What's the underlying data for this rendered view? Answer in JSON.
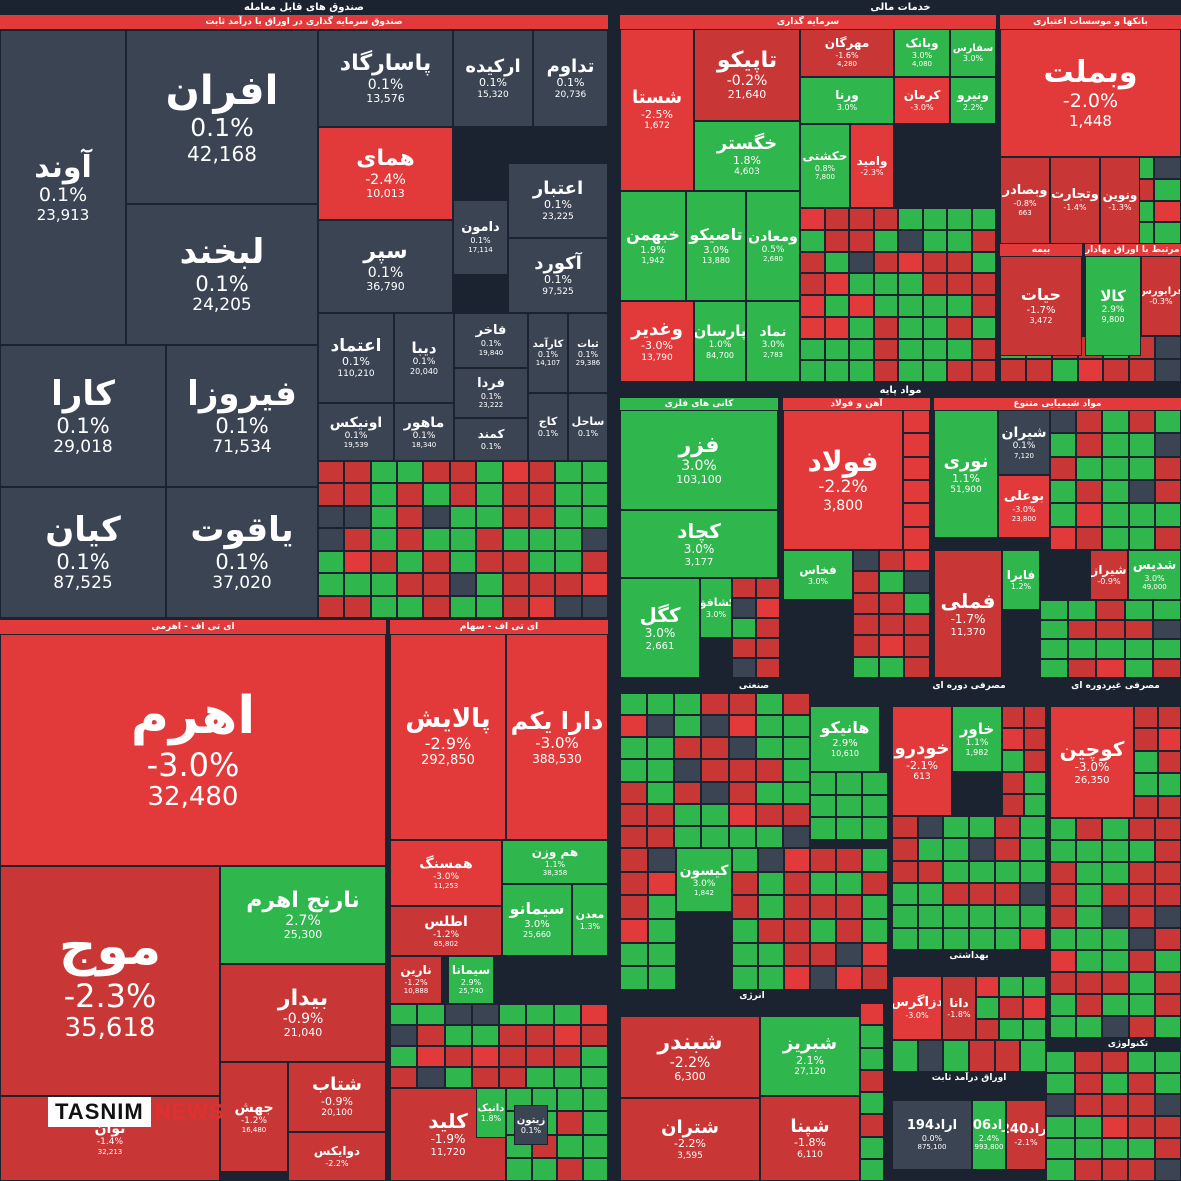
{
  "colors": {
    "up": "#2fb64c",
    "down": "#e23a3a",
    "down2": "#c93636",
    "neutral": "#3b4452",
    "hdr": "#e23a3a"
  },
  "headers": [
    {
      "id": "h-etf",
      "text": "صندوق های قابل معامله",
      "c": "none"
    },
    {
      "id": "h-etf-sub",
      "text": "صندوق سرمایه گذاری در اوراق با درآمد ثابت",
      "c": "hdr"
    },
    {
      "id": "h-fin",
      "text": "خدمات مالی",
      "c": "none"
    },
    {
      "id": "h-inv",
      "text": "سرمایه گذاری",
      "c": "hdr"
    },
    {
      "id": "h-bank",
      "text": "بانکها و موسسات اعتباری",
      "c": "hdr"
    },
    {
      "id": "h-ins",
      "text": "بیمه",
      "c": "hdr"
    },
    {
      "id": "h-fixed",
      "text": "فعالیتهای مرتبط با اوراق بهادار",
      "c": "hdr"
    },
    {
      "id": "h-base",
      "text": "مواد پایه",
      "c": "none"
    },
    {
      "id": "h-metal",
      "text": "کانی های فلزی",
      "c": "up"
    },
    {
      "id": "h-steel",
      "text": "آهن و فولاد",
      "c": "hdr"
    },
    {
      "id": "h-chem",
      "text": "مواد شیمیایی متنوع",
      "c": "hdr"
    },
    {
      "id": "h-etf-lev",
      "text": "ای تی اف - اهرمی",
      "c": "hdr"
    },
    {
      "id": "h-etf-stock",
      "text": "ای تی اف - سهام",
      "c": "hdr"
    },
    {
      "id": "h-ind",
      "text": "صنعتی",
      "c": "none"
    },
    {
      "id": "h-auto",
      "text": "مصرفی دوره ای",
      "c": "none"
    },
    {
      "id": "h-food",
      "text": "مصرفی غیردوره ای",
      "c": "none"
    },
    {
      "id": "h-energy",
      "text": "انرژی",
      "c": "none"
    },
    {
      "id": "h-health",
      "text": "بهداشتی",
      "c": "none"
    },
    {
      "id": "h-bond",
      "text": "اوراق درآمد ثابت",
      "c": "none"
    },
    {
      "id": "h-tech",
      "text": "تکنولوژی",
      "c": "none"
    }
  ],
  "tiles": [
    {
      "id": "t-afran",
      "n": "افران",
      "p": "0.1%",
      "v": "42,168",
      "c": "neutral",
      "fs": 40
    },
    {
      "id": "t-avand",
      "n": "آوند",
      "p": "0.1%",
      "v": "23,913",
      "c": "neutral",
      "fs": 30
    },
    {
      "id": "t-labkhand",
      "n": "لبخند",
      "p": "0.1%",
      "v": "24,205",
      "c": "neutral",
      "fs": 34
    },
    {
      "id": "t-kara",
      "n": "کارا",
      "p": "0.1%",
      "v": "29,018",
      "c": "neutral",
      "fs": 34
    },
    {
      "id": "t-firooza",
      "n": "فیروزا",
      "p": "0.1%",
      "v": "71,534",
      "c": "neutral",
      "fs": 34
    },
    {
      "id": "t-kian",
      "n": "کیان",
      "p": "0.1%",
      "v": "87,525",
      "c": "neutral",
      "fs": 34
    },
    {
      "id": "t-yaghoot",
      "n": "یاقوت",
      "p": "0.1%",
      "v": "37,020",
      "c": "neutral",
      "fs": 34
    },
    {
      "id": "t-pasargad",
      "n": "پاسارگاد",
      "p": "0.1%",
      "v": "13,576",
      "c": "neutral",
      "fs": 22
    },
    {
      "id": "t-arkide",
      "n": "ارکیده",
      "p": "0.1%",
      "v": "15,320",
      "c": "neutral",
      "fs": 18
    },
    {
      "id": "t-tadavom",
      "n": "تداوم",
      "p": "0.1%",
      "v": "20,736",
      "c": "neutral",
      "fs": 18
    },
    {
      "id": "t-homay",
      "n": "همای",
      "p": "-2.4%",
      "v": "10,013",
      "c": "down",
      "fs": 22
    },
    {
      "id": "t-etebar",
      "n": "اعتبار",
      "p": "0.1%",
      "v": "23,225",
      "c": "neutral",
      "fs": 18
    },
    {
      "id": "t-damoon",
      "n": "دامون",
      "p": "0.1%",
      "v": "17,114",
      "c": "neutral",
      "fs": 13
    },
    {
      "id": "t-separ",
      "n": "سپر",
      "p": "0.1%",
      "v": "36,790",
      "c": "neutral",
      "fs": 22
    },
    {
      "id": "t-akord",
      "n": "آکورد",
      "p": "0.1%",
      "v": "97,525",
      "c": "neutral",
      "fs": 18
    },
    {
      "id": "t-etemad",
      "n": "اعتماد",
      "p": "0.1%",
      "v": "110,210",
      "c": "neutral",
      "fs": 17
    },
    {
      "id": "t-diba",
      "n": "دیبا",
      "p": "0.1%",
      "v": "20,040",
      "c": "neutral",
      "fs": 15
    },
    {
      "id": "t-fakher",
      "n": "فاخر",
      "p": "0.1%",
      "v": "19,840",
      "c": "neutral",
      "fs": 13
    },
    {
      "id": "t-karamad",
      "n": "کارآمد",
      "p": "0.1%",
      "v": "14,107",
      "c": "neutral",
      "fs": 10
    },
    {
      "id": "t-sabat",
      "n": "ثبات",
      "p": "0.1%",
      "v": "29,386",
      "c": "neutral",
      "fs": 10
    },
    {
      "id": "t-farda",
      "n": "فردا",
      "p": "0.1%",
      "v": "23,222",
      "c": "neutral",
      "fs": 13
    },
    {
      "id": "t-onix",
      "n": "اونیکس",
      "p": "0.1%",
      "v": "19,539",
      "c": "neutral",
      "fs": 14
    },
    {
      "id": "t-maher",
      "n": "ماهور",
      "p": "0.1%",
      "v": "18,340",
      "c": "neutral",
      "fs": 14
    },
    {
      "id": "t-kamand",
      "n": "کمند",
      "p": "0.1%",
      "v": "",
      "c": "neutral",
      "fs": 12
    },
    {
      "id": "t-kaj",
      "n": "کاج",
      "p": "0.1%",
      "v": "",
      "c": "neutral",
      "fs": 11
    },
    {
      "id": "t-sahel",
      "n": "ساحل",
      "p": "0.1%",
      "v": "",
      "c": "neutral",
      "fs": 11
    },
    {
      "id": "t-oherm",
      "n": "اهرم",
      "p": "-3.0%",
      "v": "32,480",
      "c": "down",
      "fs": 52
    },
    {
      "id": "t-mowj",
      "n": "موج",
      "p": "-2.3%",
      "v": "35,618",
      "c": "down2",
      "fs": 52
    },
    {
      "id": "t-narenj",
      "n": "نارنج اهرم",
      "p": "2.7%",
      "v": "25,300",
      "c": "up",
      "fs": 22
    },
    {
      "id": "t-bidar",
      "n": "بیدار",
      "p": "-0.9%",
      "v": "21,040",
      "c": "down2",
      "fs": 22
    },
    {
      "id": "t-shetab",
      "n": "شتاب",
      "p": "-0.9%",
      "v": "20,100",
      "c": "down2",
      "fs": 18
    },
    {
      "id": "t-javan",
      "n": "جهش",
      "p": "-1.2%",
      "v": "16,480",
      "c": "down2",
      "fs": 14
    },
    {
      "id": "t-doviks",
      "n": "دوایکس",
      "p": "-2.2%",
      "v": "",
      "c": "down2",
      "fs": 12
    },
    {
      "id": "t-tavan",
      "n": "توان",
      "p": "-1.4%",
      "v": "32,213",
      "c": "down2",
      "fs": 14
    },
    {
      "id": "t-palayesh",
      "n": "پالایش",
      "p": "-2.9%",
      "v": "292,850",
      "c": "down",
      "fs": 26
    },
    {
      "id": "t-dara",
      "n": "دارا یکم",
      "p": "-3.0%",
      "v": "388,530",
      "c": "down",
      "fs": 24
    },
    {
      "id": "t-hamsang",
      "n": "همسنگ",
      "p": "-3.0%",
      "v": "11,253",
      "c": "down",
      "fs": 14
    },
    {
      "id": "t-hamvazn",
      "n": "هم وزن",
      "p": "1.1%",
      "v": "38,358",
      "c": "up",
      "fs": 12
    },
    {
      "id": "t-atlas",
      "n": "اطلس",
      "p": "-1.2%",
      "v": "85,802",
      "c": "down2",
      "fs": 14
    },
    {
      "id": "t-simano",
      "n": "سیمانو",
      "p": "3.0%",
      "v": "25,660",
      "c": "up",
      "fs": 16
    },
    {
      "id": "t-madan",
      "n": "معدن",
      "p": "1.3%",
      "v": "",
      "c": "up",
      "fs": 11
    },
    {
      "id": "t-narin",
      "n": "نارین",
      "p": "-1.2%",
      "v": "10,888",
      "c": "down2",
      "fs": 12
    },
    {
      "id": "t-simana",
      "n": "سیمانا",
      "p": "2.9%",
      "v": "25,740",
      "c": "up",
      "fs": 12
    },
    {
      "id": "t-kelid",
      "n": "کلید",
      "p": "-1.9%",
      "v": "11,720",
      "c": "down2",
      "fs": 20
    },
    {
      "id": "t-danik",
      "n": "دانیک",
      "p": "1.8%",
      "v": "",
      "c": "up",
      "fs": 10
    },
    {
      "id": "t-zitoon",
      "n": "زیتون",
      "p": "0.1%",
      "v": "",
      "c": "neutral",
      "fs": 10
    },
    {
      "id": "t-shetaa",
      "n": "شستا",
      "p": "-2.5%",
      "v": "1,672",
      "c": "down",
      "fs": 18
    },
    {
      "id": "t-tapico",
      "n": "تاپیکو",
      "p": "-0.2%",
      "v": "21,640",
      "c": "down2",
      "fs": 22
    },
    {
      "id": "t-mehran",
      "n": "مهرگان",
      "p": "-1.6%",
      "v": "4,280",
      "c": "down2",
      "fs": 12
    },
    {
      "id": "t-vabank",
      "n": "وبانک",
      "p": "3.0%",
      "v": "4,080",
      "c": "up",
      "fs": 12
    },
    {
      "id": "t-sefaresan",
      "n": "سفارس",
      "p": "3.0%",
      "v": "",
      "c": "up",
      "fs": 10
    },
    {
      "id": "t-khegostar",
      "n": "خگستر",
      "p": "1.8%",
      "v": "4,603",
      "c": "up",
      "fs": 18
    },
    {
      "id": "t-varena",
      "n": "ورنا",
      "p": "3.0%",
      "v": "",
      "c": "up",
      "fs": 12
    },
    {
      "id": "t-kerman",
      "n": "کرمان",
      "p": "-3.0%",
      "v": "",
      "c": "down",
      "fs": 12
    },
    {
      "id": "t-vanir",
      "n": "ونیرو",
      "p": "2.2%",
      "v": "",
      "c": "up",
      "fs": 12
    },
    {
      "id": "t-khibahman",
      "n": "خبهمن",
      "p": "1.9%",
      "v": "1,942",
      "c": "up",
      "fs": 16
    },
    {
      "id": "t-tapikoo",
      "n": "تاصیکو",
      "p": "3.0%",
      "v": "13,880",
      "c": "up",
      "fs": 16
    },
    {
      "id": "t-maadan",
      "n": "ومعادن",
      "p": "0.5%",
      "v": "2,680",
      "c": "up",
      "fs": 14
    },
    {
      "id": "t-hekeshti",
      "n": "حکشتی",
      "p": "0.8%",
      "v": "7,800",
      "c": "up",
      "fs": 12
    },
    {
      "id": "t-vomid",
      "n": "وامید",
      "p": "-2.3%",
      "v": "",
      "c": "down",
      "fs": 12
    },
    {
      "id": "t-vaghadir",
      "n": "وغدیر",
      "p": "-3.0%",
      "v": "13,790",
      "c": "down",
      "fs": 18
    },
    {
      "id": "t-parsan",
      "n": "پارسان",
      "p": "1.0%",
      "v": "84,700",
      "c": "up",
      "fs": 15
    },
    {
      "id": "t-namad",
      "n": "نماد",
      "p": "3.0%",
      "v": "2,783",
      "c": "up",
      "fs": 14
    },
    {
      "id": "t-vabmellat",
      "n": "وبملت",
      "p": "-2.0%",
      "v": "1,448",
      "c": "down",
      "fs": 30
    },
    {
      "id": "t-vabsader",
      "n": "وبصادر",
      "p": "-0.8%",
      "v": "663",
      "c": "down2",
      "fs": 13
    },
    {
      "id": "t-vtejarat",
      "n": "وتجارت",
      "p": "-1.4%",
      "v": "",
      "c": "down2",
      "fs": 13
    },
    {
      "id": "t-vnovin",
      "n": "ونوین",
      "p": "-1.3%",
      "v": "",
      "c": "down2",
      "fs": 12
    },
    {
      "id": "t-hayat",
      "n": "حیات",
      "p": "-1.7%",
      "v": "3,472",
      "c": "down2",
      "fs": 16
    },
    {
      "id": "t-kala",
      "n": "کالا",
      "p": "2.9%",
      "v": "9,800",
      "c": "up",
      "fs": 15
    },
    {
      "id": "t-farabors",
      "n": "فرابورس",
      "p": "-0.3%",
      "v": "",
      "c": "down2",
      "fs": 10
    },
    {
      "id": "t-fazar",
      "n": "فزر",
      "p": "3.0%",
      "v": "103,100",
      "c": "up",
      "fs": 22
    },
    {
      "id": "t-kechad",
      "n": "کچاد",
      "p": "3.0%",
      "v": "3,177",
      "c": "up",
      "fs": 20
    },
    {
      "id": "t-kegol",
      "n": "کگل",
      "p": "3.0%",
      "v": "2,661",
      "c": "up",
      "fs": 20
    },
    {
      "id": "t-kashaf",
      "n": "کشافق",
      "p": "3.0%",
      "v": "",
      "c": "up",
      "fs": 11
    },
    {
      "id": "t-fooolad",
      "n": "فولاد",
      "p": "-2.2%",
      "v": "3,800",
      "c": "down",
      "fs": 28
    },
    {
      "id": "t-fakhas",
      "n": "فخاس",
      "p": "3.0%",
      "v": "",
      "c": "up",
      "fs": 12
    },
    {
      "id": "t-noori",
      "n": "نوری",
      "p": "1.1%",
      "v": "51,900",
      "c": "up",
      "fs": 18
    },
    {
      "id": "t-shiran",
      "n": "شیران",
      "p": "0.1%",
      "v": "7,120",
      "c": "neutral",
      "fs": 14
    },
    {
      "id": "t-booali",
      "n": "بوعلی",
      "p": "-3.0%",
      "v": "23,800",
      "c": "down",
      "fs": 13
    },
    {
      "id": "t-fameli",
      "n": "فملی",
      "p": "-1.7%",
      "v": "11,370",
      "c": "down2",
      "fs": 20
    },
    {
      "id": "t-faira",
      "n": "فایرا",
      "p": "1.2%",
      "v": "",
      "c": "up",
      "fs": 12
    },
    {
      "id": "t-shiraz",
      "n": "شیراز",
      "p": "-0.9%",
      "v": "",
      "c": "down2",
      "fs": 12
    },
    {
      "id": "t-shadis",
      "n": "شدیس",
      "p": "3.0%",
      "v": "49,000",
      "c": "up",
      "fs": 13
    },
    {
      "id": "t-haniko",
      "n": "هانیکو",
      "p": "2.9%",
      "v": "10,610",
      "c": "up",
      "fs": 16
    },
    {
      "id": "t-kesoon",
      "n": "کیسون",
      "p": "3.0%",
      "v": "1,842",
      "c": "up",
      "fs": 14
    },
    {
      "id": "t-khodro",
      "n": "خودرو",
      "p": "-2.1%",
      "v": "613",
      "c": "down",
      "fs": 18
    },
    {
      "id": "t-khavar",
      "n": "خاور",
      "p": "1.1%",
      "v": "1,982",
      "c": "up",
      "fs": 15
    },
    {
      "id": "t-kochin",
      "n": "کوچین",
      "p": "-3.0%",
      "v": "26,350",
      "c": "down",
      "fs": 20
    },
    {
      "id": "t-shebandar",
      "n": "شبندر",
      "p": "-2.2%",
      "v": "6,300",
      "c": "down2",
      "fs": 22
    },
    {
      "id": "t-shebriz",
      "n": "شبریز",
      "p": "2.1%",
      "v": "27,120",
      "c": "up",
      "fs": 18
    },
    {
      "id": "t-shetran",
      "n": "شتران",
      "p": "-2.2%",
      "v": "3,595",
      "c": "down2",
      "fs": 18
    },
    {
      "id": "t-shepna",
      "n": "شپنا",
      "p": "-1.8%",
      "v": "6,110",
      "c": "down2",
      "fs": 18
    },
    {
      "id": "t-dzagros",
      "n": "دزاگرس",
      "p": "-3.0%",
      "v": "",
      "c": "down",
      "fs": 13
    },
    {
      "id": "t-dana",
      "n": "داتا",
      "p": "-1.8%",
      "v": "",
      "c": "down2",
      "fs": 12
    },
    {
      "id": "t-arad194",
      "n": "اراد194",
      "p": "0.0%",
      "v": "875,100",
      "c": "neutral",
      "fs": 13
    },
    {
      "id": "t-arad206",
      "n": "اراد206",
      "p": "2.4%",
      "v": "993,800",
      "c": "up",
      "fs": 13
    },
    {
      "id": "t-arad240",
      "n": "اراد240",
      "p": "-2.1%",
      "v": "",
      "c": "down2",
      "fs": 13
    }
  ],
  "logo": {
    "a": "TASNIM",
    "b": "NEWS"
  }
}
